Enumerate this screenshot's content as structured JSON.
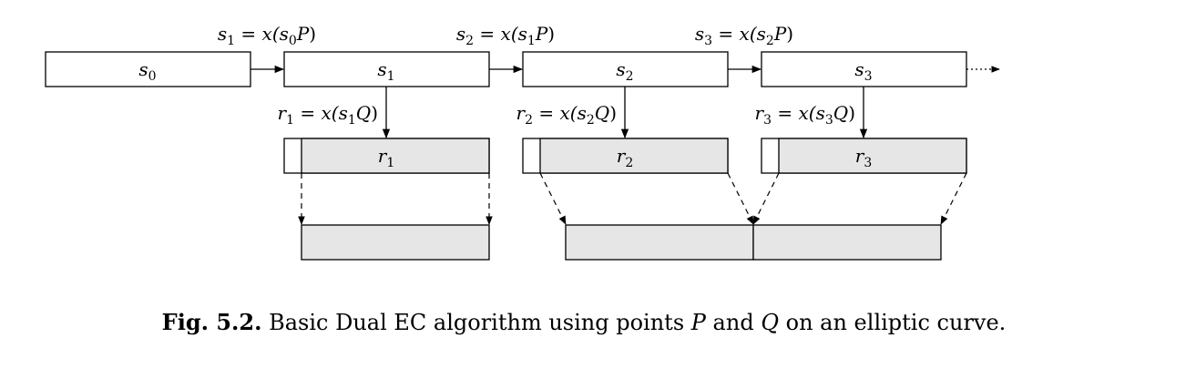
{
  "state_labels": [
    {
      "base": "s",
      "sub": "0"
    },
    {
      "base": "s",
      "sub": "1"
    },
    {
      "base": "s",
      "sub": "2"
    },
    {
      "base": "s",
      "sub": "3"
    }
  ],
  "state_update_labels": [
    {
      "lhs": "s",
      "lhs_sub": "1",
      "eq": " = ",
      "fn": "x(",
      "arg": "s",
      "arg_sub": "0",
      "pt": "P",
      "close": ")"
    },
    {
      "lhs": "s",
      "lhs_sub": "2",
      "eq": " = ",
      "fn": "x(",
      "arg": "s",
      "arg_sub": "1",
      "pt": "P",
      "close": ")"
    },
    {
      "lhs": "s",
      "lhs_sub": "3",
      "eq": " = ",
      "fn": "x(",
      "arg": "s",
      "arg_sub": "2",
      "pt": "P",
      "close": ")"
    }
  ],
  "output_labels": [
    {
      "lhs": "r",
      "lhs_sub": "1",
      "eq": " = ",
      "fn": "x(",
      "arg": "s",
      "arg_sub": "1",
      "pt": "Q",
      "close": ")"
    },
    {
      "lhs": "r",
      "lhs_sub": "2",
      "eq": " = ",
      "fn": "x(",
      "arg": "s",
      "arg_sub": "2",
      "pt": "Q",
      "close": ")"
    },
    {
      "lhs": "r",
      "lhs_sub": "3",
      "eq": " = ",
      "fn": "x(",
      "arg": "s",
      "arg_sub": "3",
      "pt": "Q",
      "close": ")"
    }
  ],
  "output_boxes": [
    {
      "base": "r",
      "sub": "1"
    },
    {
      "base": "r",
      "sub": "2"
    },
    {
      "base": "r",
      "sub": "3"
    }
  ],
  "caption": {
    "prefix": "Fig. 5.2.",
    "text_a": " Basic Dual EC algorithm using points ",
    "p": "P",
    "text_b": " and ",
    "q": "Q",
    "text_c": " on an elliptic curve."
  }
}
